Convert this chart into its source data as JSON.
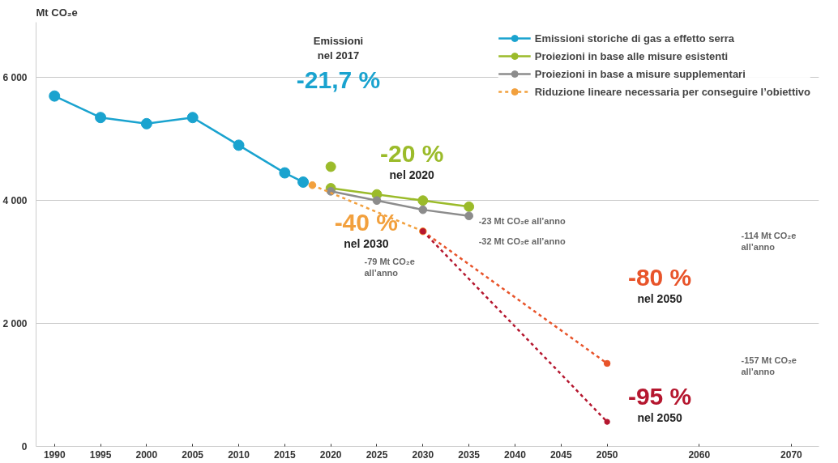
{
  "chart_data": {
    "type": "line",
    "ylabel": "Mt CO₂e",
    "xlim": [
      1988,
      2073
    ],
    "ylim": [
      0,
      6900
    ],
    "xticks": [
      1990,
      1995,
      2000,
      2005,
      2010,
      2015,
      2020,
      2025,
      2030,
      2035,
      2040,
      2045,
      2050,
      2060,
      2070
    ],
    "yticks": [
      0,
      {
        "value": 2000,
        "label": "2 000"
      },
      {
        "value": 4000,
        "label": "4 000"
      },
      {
        "value": 6000,
        "label": "6 000"
      }
    ],
    "grid": "y",
    "legend": "top right",
    "marker": "circle",
    "series": [
      {
        "name": "Emissioni storiche di gas a effetto serra",
        "color": "#1aa3cf",
        "x": [
          1990,
          1995,
          2000,
          2005,
          2010,
          2015,
          2017
        ],
        "values": [
          5700,
          5350,
          5250,
          5350,
          4900,
          4450,
          4300
        ],
        "line_style": "solid"
      },
      {
        "name": "Proiezioni in base alle misure esistenti",
        "color": "#9bbb2a",
        "x": [
          2020,
          2025,
          2030,
          2035
        ],
        "values": [
          4200,
          4100,
          4000,
          3900
        ],
        "line_style": "solid"
      },
      {
        "type": "scatter",
        "color": "#9bbb2a",
        "x": [
          2020
        ],
        "values": [
          4550
        ]
      },
      {
        "name": "Proiezioni in base a misure supplementari",
        "color": "#8c8c8c",
        "x": [
          2020,
          2025,
          2030,
          2035
        ],
        "values": [
          4150,
          4000,
          3850,
          3750
        ],
        "line_style": "solid"
      },
      {
        "name": "Riduzione lineare necessaria per conseguire l’obiettivo",
        "color": "#f2a03d",
        "x": [
          2018,
          2030
        ],
        "values": [
          4250,
          3500
        ],
        "line_style": "dotted"
      },
      {
        "color": "#e8542a",
        "x": [
          2030,
          2050
        ],
        "values": [
          3500,
          1350
        ],
        "line_style": "dotted"
      },
      {
        "color": "#b5172f",
        "x": [
          2030,
          2050
        ],
        "values": [
          3500,
          400
        ],
        "line_style": "dotted"
      }
    ],
    "annotations": [
      "Emissioni\nnel 2017\n-21,7 %",
      {
        "text": "-20 %\nnel 2020",
        "x": 2020,
        "y": 4550
      },
      {
        "text": "-40 %\nnel 2030",
        "x": 2030,
        "y": 3500
      },
      {
        "text": "-80 %\nnel 2050",
        "x": 2050,
        "y": 1350
      },
      {
        "text": "-95 %\nnel 2050",
        "x": 2050,
        "y": 400
      },
      {
        "text": "-23 Mt CO₂e all’anno",
        "x": 2035,
        "y": 3900
      },
      {
        "text": "-32 Mt CO₂e all’anno",
        "x": 2035,
        "y": 3750
      },
      "-79 Mt CO₂e\nall’anno",
      "-114 Mt CO₂e\nall’anno",
      "-157 Mt CO₂e\nall’anno"
    ]
  }
}
